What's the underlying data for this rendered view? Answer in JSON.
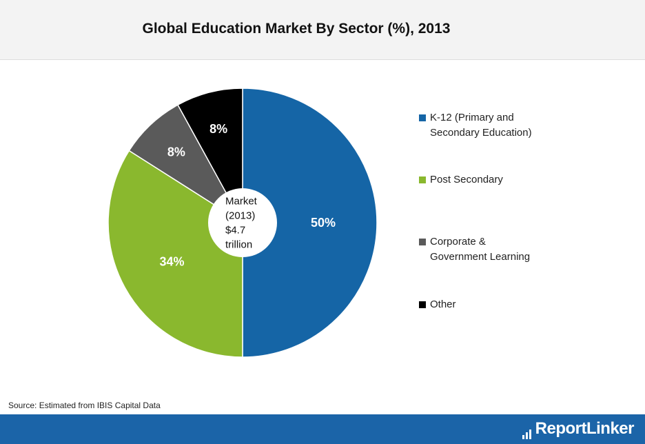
{
  "title": "Global Education Market By Sector (%), 2013",
  "source": "Source: Estimated from IBIS Capital Data",
  "brand": "ReportLinker",
  "center_label": [
    "Market",
    "(2013)",
    "$4.7",
    "trillion"
  ],
  "colors": {
    "footer": "#1b64a8",
    "title_bg": "#f3f3f3"
  },
  "chart_data": {
    "type": "pie",
    "title": "Global Education Market By Sector (%), 2013",
    "slices": [
      {
        "name": "K-12 (Primary and\nSecondary Education)",
        "value": 50,
        "label": "50%",
        "color": "#1565a6"
      },
      {
        "name": "Post Secondary",
        "value": 34,
        "label": "34%",
        "color": "#8ab82e"
      },
      {
        "name": "Corporate &\nGovernment Learning",
        "value": 8,
        "label": "8%",
        "color": "#5a5a5a"
      },
      {
        "name": "Other",
        "value": 8,
        "label": "8%",
        "color": "#000000"
      }
    ],
    "legend_position": "right"
  }
}
